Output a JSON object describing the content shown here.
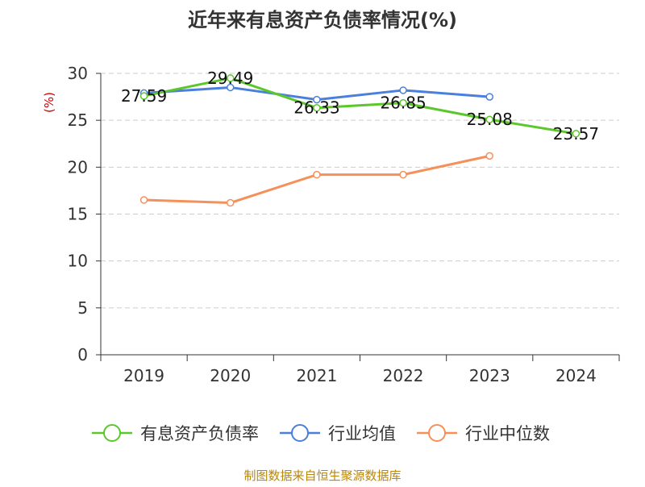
{
  "title": "近年来有息资产负债率情况(%)",
  "source": "制图数据来自恒生聚源数据库",
  "colors": {
    "title": "#333333",
    "axis": "#333333",
    "grid": "#cccccc",
    "ylabel": "#cc0000",
    "source": "#b8860b"
  },
  "chart_data": {
    "type": "line",
    "title": "近年来有息资产负债率情况(%)",
    "xlabel": "",
    "ylabel": "(%)",
    "categories": [
      "2019",
      "2020",
      "2021",
      "2022",
      "2023",
      "2024"
    ],
    "ylim": [
      0,
      30
    ],
    "yticks": [
      0,
      5,
      10,
      15,
      20,
      25,
      30
    ],
    "grid": true,
    "legend_position": "bottom",
    "series": [
      {
        "name": "有息资产负债率",
        "color": "#5cc72b",
        "values": [
          27.59,
          29.49,
          26.33,
          26.85,
          25.08,
          23.57
        ],
        "data_labels": [
          "27.59",
          "29.49",
          "26.33",
          "26.85",
          "25.08",
          "23.57"
        ]
      },
      {
        "name": "行业均值",
        "color": "#4a7fdc",
        "values": [
          27.9,
          28.5,
          27.2,
          28.2,
          27.5,
          null
        ]
      },
      {
        "name": "行业中位数",
        "color": "#f5905a",
        "values": [
          16.5,
          16.2,
          19.2,
          19.2,
          21.2,
          null
        ]
      }
    ]
  }
}
